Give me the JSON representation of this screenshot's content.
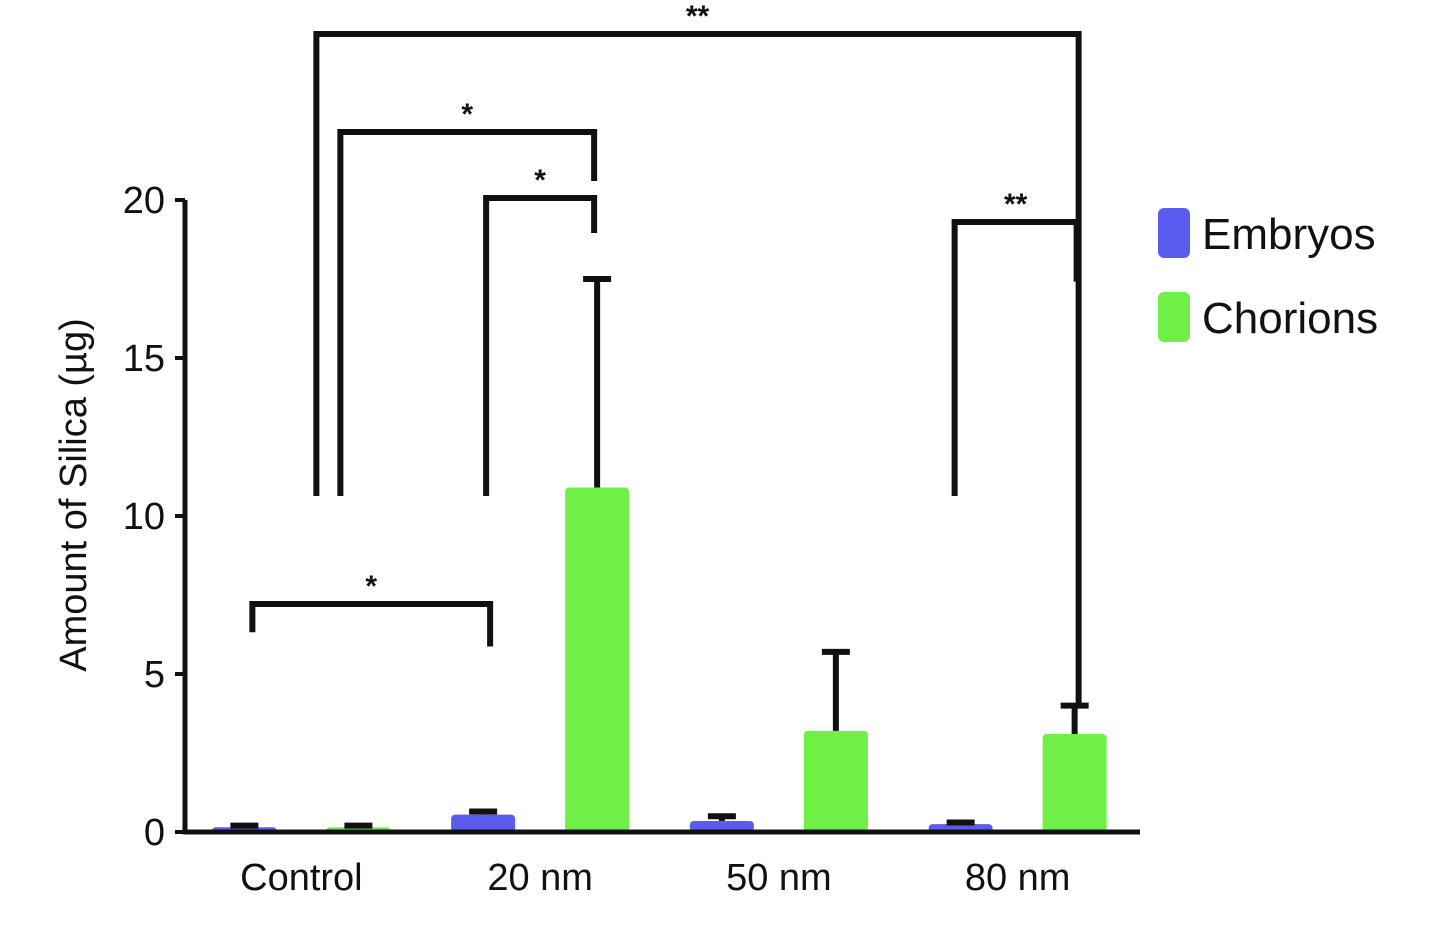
{
  "chart_data": {
    "type": "bar",
    "title": "",
    "xlabel": "",
    "ylabel": "Amount of Silica (µg)",
    "ylim": [
      0,
      20
    ],
    "yticks": [
      0,
      5,
      10,
      15,
      20
    ],
    "categories": [
      "Control",
      "20 nm",
      "50 nm",
      "80 nm"
    ],
    "series": [
      {
        "name": "Embryos",
        "color": "#5b5bf0",
        "values": [
          0.15,
          0.55,
          0.35,
          0.25
        ],
        "errors": [
          0.05,
          0.1,
          0.15,
          0.05
        ]
      },
      {
        "name": "Chorions",
        "color": "#6ef046",
        "values": [
          0.15,
          10.9,
          3.2,
          3.1
        ],
        "errors": [
          0.05,
          6.6,
          2.5,
          0.9
        ]
      }
    ],
    "legend_position": "right",
    "grid": false,
    "significance": [
      {
        "label": "*",
        "from": "Control Embryos",
        "to": "20 nm Embryos"
      },
      {
        "label": "*",
        "from": "20 nm Embryos",
        "to": "20 nm Chorions"
      },
      {
        "label": "*",
        "from": "Control Chorions",
        "to": "20 nm Chorions"
      },
      {
        "label": "**",
        "from": "Control Embryos",
        "to": "80 nm Chorions"
      },
      {
        "label": "**",
        "from": "80 nm Embryos",
        "to": "80 nm Chorions"
      }
    ]
  }
}
